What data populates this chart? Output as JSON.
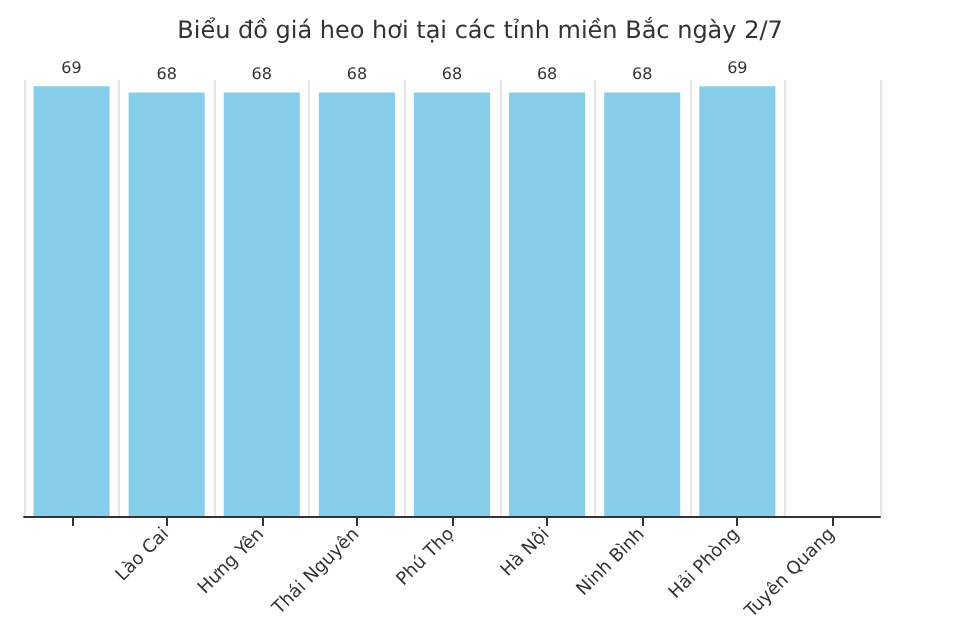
{
  "chart_data": {
    "type": "bar",
    "title": "Biểu đồ giá heo hơi tại các tỉnh miền Bắc ngày 2/7",
    "categories": [
      null,
      "Lào Cai",
      "Hưng Yên",
      "Thái Nguyên",
      "Phú Thọ",
      "Hà Nội",
      "Ninh Bình",
      "Hải Phòng",
      "Tuyên Quang"
    ],
    "values": [
      69,
      68,
      68,
      68,
      68,
      68,
      68,
      69,
      null
    ],
    "color": "#87ceeb",
    "data_labels": true,
    "grid": "x"
  }
}
